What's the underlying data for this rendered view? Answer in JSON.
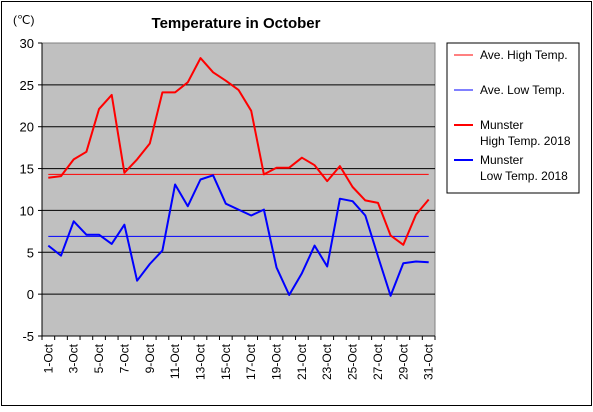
{
  "chart_data": {
    "type": "line",
    "title": "Temperature in October",
    "ylabel": "(℃)",
    "ylim": [
      -5,
      30
    ],
    "yticks": [
      -5,
      0,
      5,
      10,
      15,
      20,
      25,
      30
    ],
    "grid": true,
    "legend_position": "right",
    "categories": [
      "1-Oct",
      "2-Oct",
      "3-Oct",
      "4-Oct",
      "5-Oct",
      "6-Oct",
      "7-Oct",
      "8-Oct",
      "9-Oct",
      "10-Oct",
      "11-Oct",
      "12-Oct",
      "13-Oct",
      "14-Oct",
      "15-Oct",
      "16-Oct",
      "17-Oct",
      "18-Oct",
      "19-Oct",
      "20-Oct",
      "21-Oct",
      "22-Oct",
      "23-Oct",
      "24-Oct",
      "25-Oct",
      "26-Oct",
      "27-Oct",
      "28-Oct",
      "29-Oct",
      "30-Oct",
      "31-Oct"
    ],
    "tick_labels": [
      "1-Oct",
      "3-Oct",
      "5-Oct",
      "7-Oct",
      "9-Oct",
      "11-Oct",
      "13-Oct",
      "15-Oct",
      "17-Oct",
      "19-Oct",
      "21-Oct",
      "23-Oct",
      "25-Oct",
      "27-Oct",
      "29-Oct",
      "31-Oct"
    ],
    "series": [
      {
        "name": "Ave. High Temp.",
        "color": "#ff0000",
        "width": 1,
        "values": [
          14.3,
          14.3,
          14.3,
          14.3,
          14.3,
          14.3,
          14.3,
          14.3,
          14.3,
          14.3,
          14.3,
          14.3,
          14.3,
          14.3,
          14.3,
          14.3,
          14.3,
          14.3,
          14.3,
          14.3,
          14.3,
          14.3,
          14.3,
          14.3,
          14.3,
          14.3,
          14.3,
          14.3,
          14.3,
          14.3,
          14.3
        ]
      },
      {
        "name": "Ave. Low Temp.",
        "color": "#0000ff",
        "width": 1,
        "values": [
          6.9,
          6.9,
          6.9,
          6.9,
          6.9,
          6.9,
          6.9,
          6.9,
          6.9,
          6.9,
          6.9,
          6.9,
          6.9,
          6.9,
          6.9,
          6.9,
          6.9,
          6.9,
          6.9,
          6.9,
          6.9,
          6.9,
          6.9,
          6.9,
          6.9,
          6.9,
          6.9,
          6.9,
          6.9,
          6.9,
          6.9
        ]
      },
      {
        "name": "Munster\nHigh Temp. 2018",
        "color": "#ff0000",
        "width": 2,
        "values": [
          13.9,
          14.1,
          16.1,
          17.0,
          22.1,
          23.8,
          14.5,
          16.1,
          18.0,
          24.1,
          24.1,
          25.3,
          28.2,
          26.5,
          25.5,
          24.4,
          21.9,
          14.3,
          15.1,
          15.1,
          16.3,
          15.4,
          13.5,
          15.3,
          12.8,
          11.2,
          10.9,
          7.0,
          5.9,
          9.5,
          11.3
        ]
      },
      {
        "name": "Munster\nLow Temp. 2018",
        "color": "#0000ff",
        "width": 2,
        "values": [
          5.8,
          4.6,
          8.7,
          7.1,
          7.1,
          6.0,
          8.3,
          1.6,
          3.6,
          5.2,
          13.1,
          10.5,
          13.7,
          14.2,
          10.8,
          10.1,
          9.4,
          10.1,
          3.2,
          -0.1,
          2.5,
          5.8,
          3.3,
          11.4,
          11.1,
          9.4,
          4.5,
          -0.2,
          3.7,
          3.9,
          3.8
        ]
      }
    ]
  }
}
